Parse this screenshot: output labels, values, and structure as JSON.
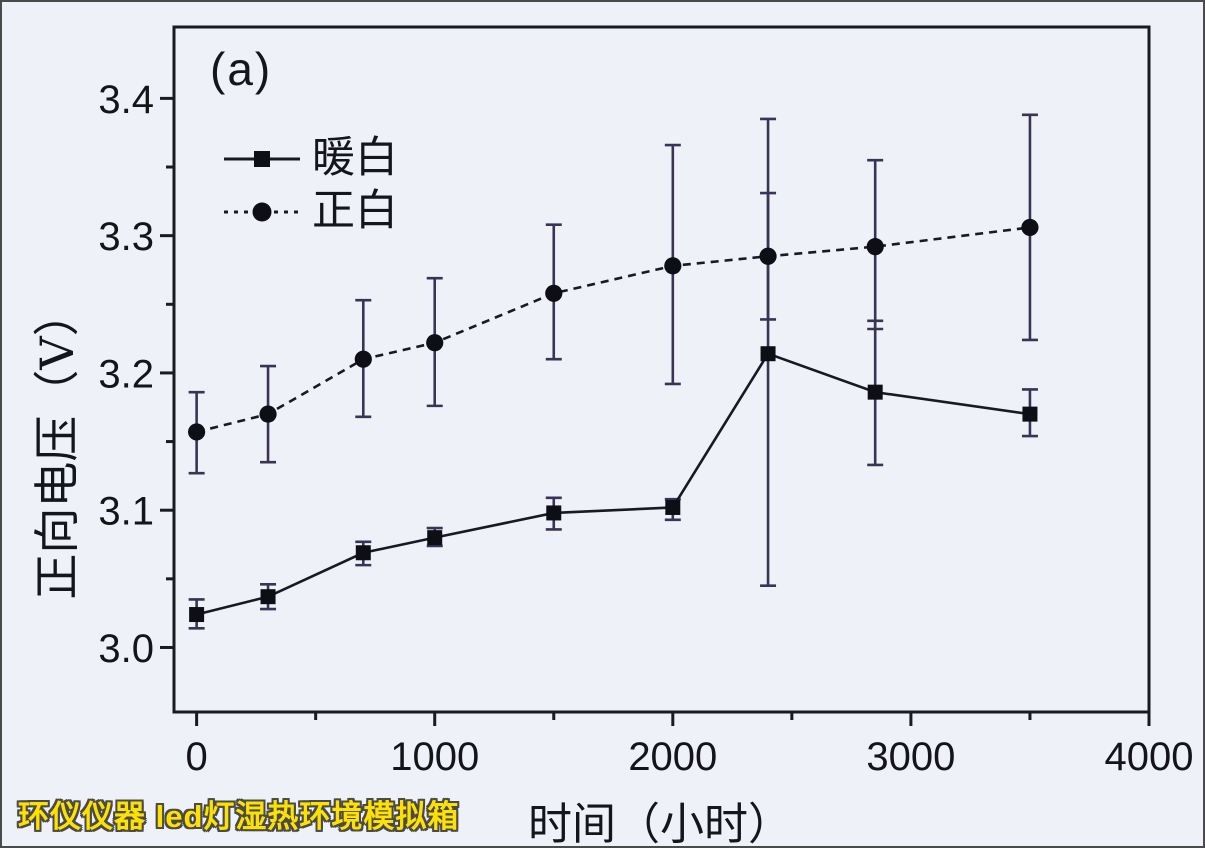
{
  "figure": {
    "panel_label": "(a)",
    "watermark_text": "环仪仪器 led灯湿热环境模拟箱",
    "watermark_color": "#ffe100",
    "watermark_outline_color": "#4a4a4a",
    "background_color": "#eef2f8"
  },
  "chart_data": {
    "type": "line",
    "title": "",
    "xlabel": "时间（小时）",
    "ylabel": "正向电压（V）",
    "xlim": [
      -95,
      4000
    ],
    "ylim": [
      2.953,
      3.452
    ],
    "x_major_ticks": [
      0,
      1000,
      2000,
      3000,
      4000
    ],
    "x_minor_ticks": [
      500,
      1500,
      2500,
      3500
    ],
    "y_major_ticks": [
      3.0,
      3.1,
      3.2,
      3.3,
      3.4
    ],
    "y_minor_ticks": [
      3.05,
      3.15,
      3.25,
      3.35
    ],
    "y_tick_decimals": 1,
    "grid": false,
    "legend_position": "upper-left",
    "colors": {
      "frame": "#1a1a22",
      "tick_label": "#141419",
      "line": "#191926",
      "marker": "#0e0e16",
      "error_bar": "#3a3356"
    },
    "x": [
      0,
      300,
      700,
      1000,
      1500,
      2000,
      2400,
      2850,
      3500
    ],
    "series": [
      {
        "name": "暖白",
        "marker": "square",
        "line_style": "solid",
        "y": [
          3.024,
          3.037,
          3.069,
          3.08,
          3.098,
          3.102,
          3.214,
          3.186,
          3.17
        ],
        "err_lo": [
          3.014,
          3.028,
          3.06,
          3.074,
          3.086,
          3.093,
          3.045,
          3.133,
          3.154
        ],
        "err_hi": [
          3.035,
          3.046,
          3.077,
          3.087,
          3.109,
          3.108,
          3.331,
          3.238,
          3.188
        ]
      },
      {
        "name": "正白",
        "marker": "circle",
        "line_style": "dashed",
        "y": [
          3.157,
          3.17,
          3.21,
          3.222,
          3.258,
          3.278,
          3.285,
          3.292,
          3.306
        ],
        "err_lo": [
          3.127,
          3.135,
          3.168,
          3.176,
          3.21,
          3.192,
          3.239,
          3.232,
          3.224
        ],
        "err_hi": [
          3.186,
          3.205,
          3.253,
          3.269,
          3.308,
          3.366,
          3.385,
          3.355,
          3.388
        ]
      }
    ]
  }
}
